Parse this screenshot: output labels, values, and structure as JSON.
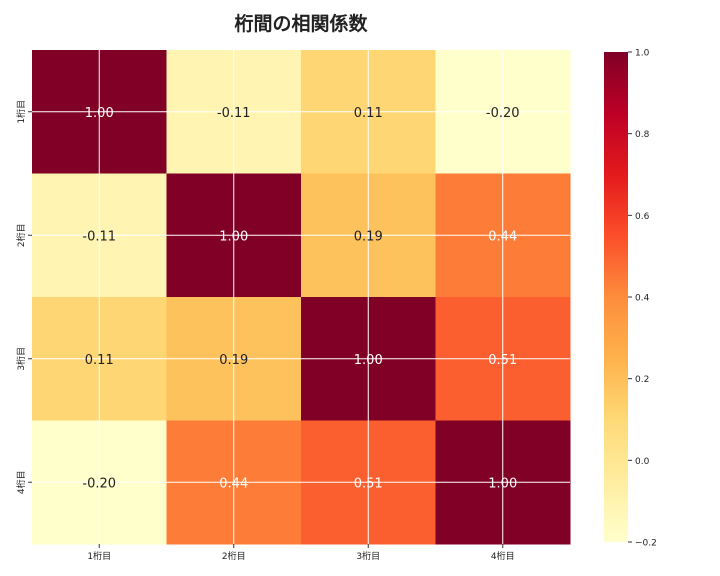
{
  "chart_data": {
    "type": "heatmap",
    "title": "桁間の相関係数",
    "x_labels": [
      "1桁目",
      "2桁目",
      "3桁目",
      "4桁目"
    ],
    "y_labels": [
      "1桁目",
      "2桁目",
      "3桁目",
      "4桁目"
    ],
    "values": [
      [
        1.0,
        -0.11,
        0.11,
        -0.2
      ],
      [
        -0.11,
        1.0,
        0.19,
        0.44
      ],
      [
        0.11,
        0.19,
        1.0,
        0.51
      ],
      [
        -0.2,
        0.44,
        0.51,
        1.0
      ]
    ],
    "value_labels": [
      [
        "1.00",
        "-0.11",
        "0.11",
        "-0.20"
      ],
      [
        "-0.11",
        "1.00",
        "0.19",
        "0.44"
      ],
      [
        "0.11",
        "0.19",
        "1.00",
        "0.51"
      ],
      [
        "-0.20",
        "0.44",
        "0.51",
        "1.00"
      ]
    ],
    "colormap": "YlOrRd",
    "colormap_stops": [
      "#ffffcc",
      "#ffeda0",
      "#fed976",
      "#feb24c",
      "#fd8d3c",
      "#fc4e2a",
      "#e31a1c",
      "#bd0026",
      "#800026"
    ],
    "color_range": [
      -0.2,
      1.0
    ],
    "colorbar_ticks": [
      "1.0",
      "0.8",
      "0.6",
      "0.4",
      "0.2",
      "0.0",
      "−0.2"
    ],
    "colorbar_tick_values": [
      1.0,
      0.8,
      0.6,
      0.4,
      0.2,
      0.0,
      -0.2
    ],
    "grid": true
  }
}
